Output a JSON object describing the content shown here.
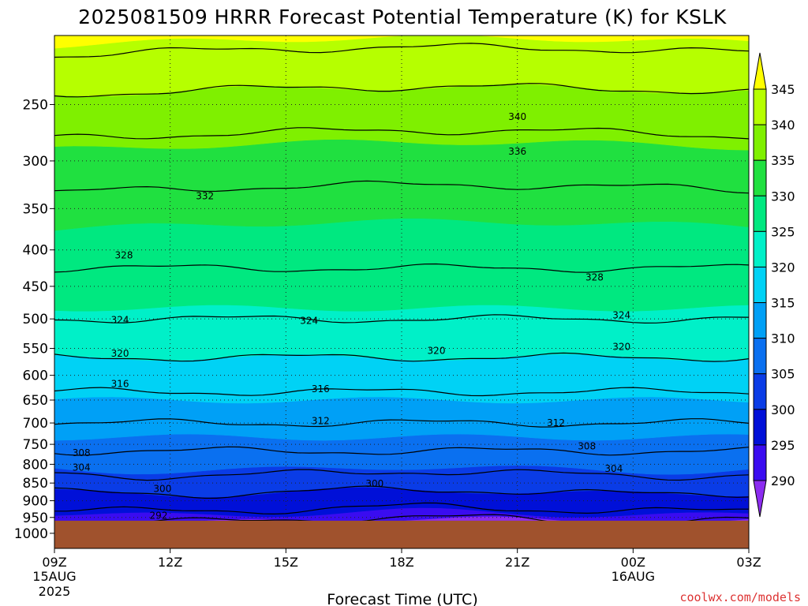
{
  "chart_data": {
    "type": "contour",
    "title": "2025081509 HRRR Forecast Potential Temperature (K) for KSLK",
    "xlabel": "Forecast Time (UTC)",
    "ylabel": "",
    "credit": "coolwx.com/models",
    "x_ticks": [
      {
        "hours": 0,
        "label": "09Z",
        "sub1": "15AUG",
        "sub2": "2025"
      },
      {
        "hours": 3,
        "label": "12Z",
        "sub1": "",
        "sub2": ""
      },
      {
        "hours": 6,
        "label": "15Z",
        "sub1": "",
        "sub2": ""
      },
      {
        "hours": 9,
        "label": "18Z",
        "sub1": "",
        "sub2": ""
      },
      {
        "hours": 12,
        "label": "21Z",
        "sub1": "",
        "sub2": ""
      },
      {
        "hours": 15,
        "label": "00Z",
        "sub1": "16AUG",
        "sub2": ""
      },
      {
        "hours": 18,
        "label": "03Z",
        "sub1": "",
        "sub2": ""
      }
    ],
    "y_ticks": [
      250,
      300,
      350,
      400,
      450,
      500,
      550,
      600,
      650,
      700,
      750,
      800,
      850,
      900,
      950,
      1000
    ],
    "y_scale": "log-pressure",
    "ylim_hpa": [
      200,
      1050
    ],
    "terrain_pressure_hpa": 960,
    "terrain_color": "#a0522d",
    "colorbar": {
      "levels": [
        290,
        295,
        300,
        305,
        310,
        315,
        320,
        325,
        330,
        335,
        340,
        345
      ],
      "labels": [
        "345",
        "340",
        "335",
        "330",
        "325",
        "320",
        "315",
        "310",
        "305",
        "300",
        "295",
        "290"
      ],
      "colors": [
        "#8c2cf0",
        "#3a0cf0",
        "#0010d8",
        "#0a3ce6",
        "#0a70f0",
        "#00a0f6",
        "#00d2f5",
        "#00f0c8",
        "#00e880",
        "#20e040",
        "#7ff000",
        "#b6ff00",
        "#ffff00"
      ],
      "extend": "both"
    },
    "isotherm_profile": {
      "pressure_hpa": [
        960,
        950,
        900,
        850,
        800,
        750,
        700,
        650,
        600,
        550,
        500,
        450,
        400,
        350,
        300,
        250,
        200
      ],
      "theta_k": [
        291,
        294,
        298,
        302,
        306,
        309,
        312,
        315,
        318,
        321,
        324,
        327,
        329,
        331,
        334,
        339,
        346
      ]
    },
    "contour_levels": [
      292,
      296,
      300,
      304,
      308,
      312,
      316,
      320,
      324,
      328,
      332,
      336,
      340,
      344
    ],
    "contour_labels": [
      {
        "value": "292",
        "hours": 2.7,
        "hpa": 944
      },
      {
        "value": "300",
        "hours": 2.8,
        "hpa": 866
      },
      {
        "value": "300",
        "hours": 8.3,
        "hpa": 852
      },
      {
        "value": "304",
        "hours": 0.7,
        "hpa": 808
      },
      {
        "value": "304",
        "hours": 14.5,
        "hpa": 811
      },
      {
        "value": "308",
        "hours": 0.7,
        "hpa": 771
      },
      {
        "value": "308",
        "hours": 13.8,
        "hpa": 755
      },
      {
        "value": "312",
        "hours": 6.9,
        "hpa": 695
      },
      {
        "value": "312",
        "hours": 13.0,
        "hpa": 700
      },
      {
        "value": "316",
        "hours": 1.7,
        "hpa": 617
      },
      {
        "value": "316",
        "hours": 6.9,
        "hpa": 627
      },
      {
        "value": "320",
        "hours": 1.7,
        "hpa": 559
      },
      {
        "value": "320",
        "hours": 9.9,
        "hpa": 554
      },
      {
        "value": "320",
        "hours": 14.7,
        "hpa": 547
      },
      {
        "value": "324",
        "hours": 1.7,
        "hpa": 502
      },
      {
        "value": "324",
        "hours": 6.6,
        "hpa": 503
      },
      {
        "value": "324",
        "hours": 14.7,
        "hpa": 494
      },
      {
        "value": "328",
        "hours": 1.8,
        "hpa": 407
      },
      {
        "value": "328",
        "hours": 14.0,
        "hpa": 437
      },
      {
        "value": "332",
        "hours": 3.9,
        "hpa": 336
      },
      {
        "value": "336",
        "hours": 12.0,
        "hpa": 291
      },
      {
        "value": "340",
        "hours": 12.0,
        "hpa": 260
      }
    ]
  }
}
